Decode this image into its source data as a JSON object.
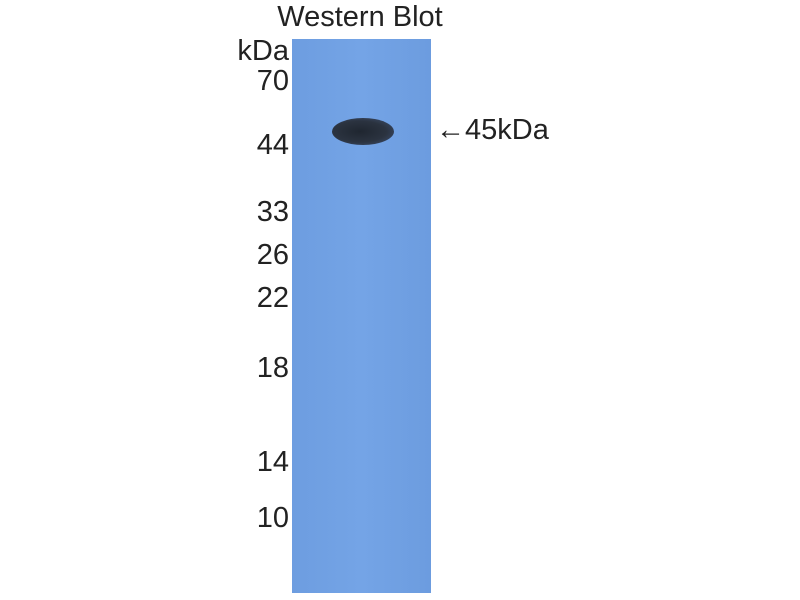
{
  "title": "Western Blot",
  "unit_label": "kDa",
  "markers": [
    "70",
    "44",
    "33",
    "26",
    "22",
    "18",
    "14",
    "10"
  ],
  "band_annotation": {
    "arrow": "←",
    "label": "45kDa"
  },
  "colors": {
    "membrane": "#6e9fe0",
    "band": "#252c36"
  }
}
